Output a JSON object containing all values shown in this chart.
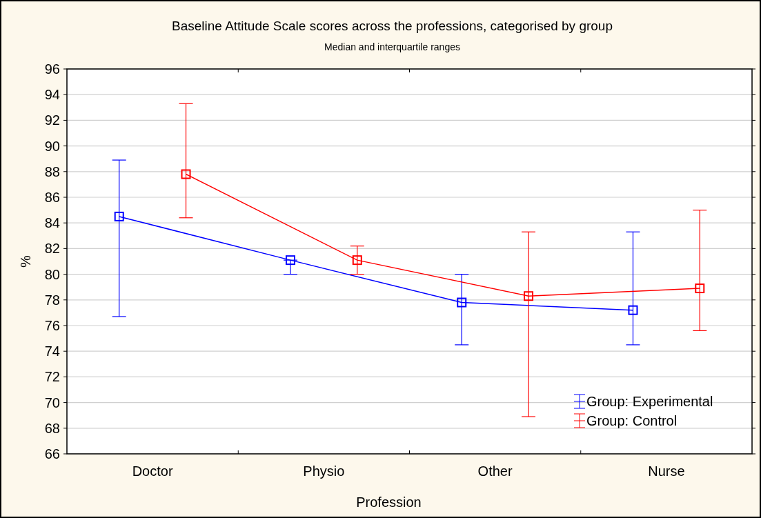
{
  "chart_data": {
    "type": "line",
    "title": "Baseline Attitude Scale scores across the professions, categorised by group",
    "subtitle": "Median and interquartile ranges",
    "xlabel": "Profession",
    "ylabel": "%",
    "categories": [
      "Doctor",
      "Physio",
      "Other",
      "Nurse"
    ],
    "series": [
      {
        "name": "Group: Experimental",
        "color": "#0000ff",
        "values": [
          84.5,
          81.1,
          77.8,
          77.2
        ],
        "errors": [
          [
            76.7,
            88.9
          ],
          [
            80.0,
            81.1
          ],
          [
            74.5,
            80.0
          ],
          [
            74.5,
            83.3
          ]
        ]
      },
      {
        "name": "Group: Control",
        "color": "#ff0000",
        "values": [
          87.8,
          81.1,
          78.3,
          78.9
        ],
        "errors": [
          [
            84.4,
            93.3
          ],
          [
            80.0,
            82.2
          ],
          [
            68.9,
            83.3
          ],
          [
            75.6,
            85.0
          ]
        ]
      }
    ],
    "ylim": [
      66,
      96
    ],
    "yticks": [
      66,
      68,
      70,
      72,
      74,
      76,
      78,
      80,
      82,
      84,
      86,
      88,
      90,
      92,
      94,
      96
    ],
    "grid": "y",
    "legend": "bottom right",
    "marker": "square",
    "line_style": "solid"
  }
}
